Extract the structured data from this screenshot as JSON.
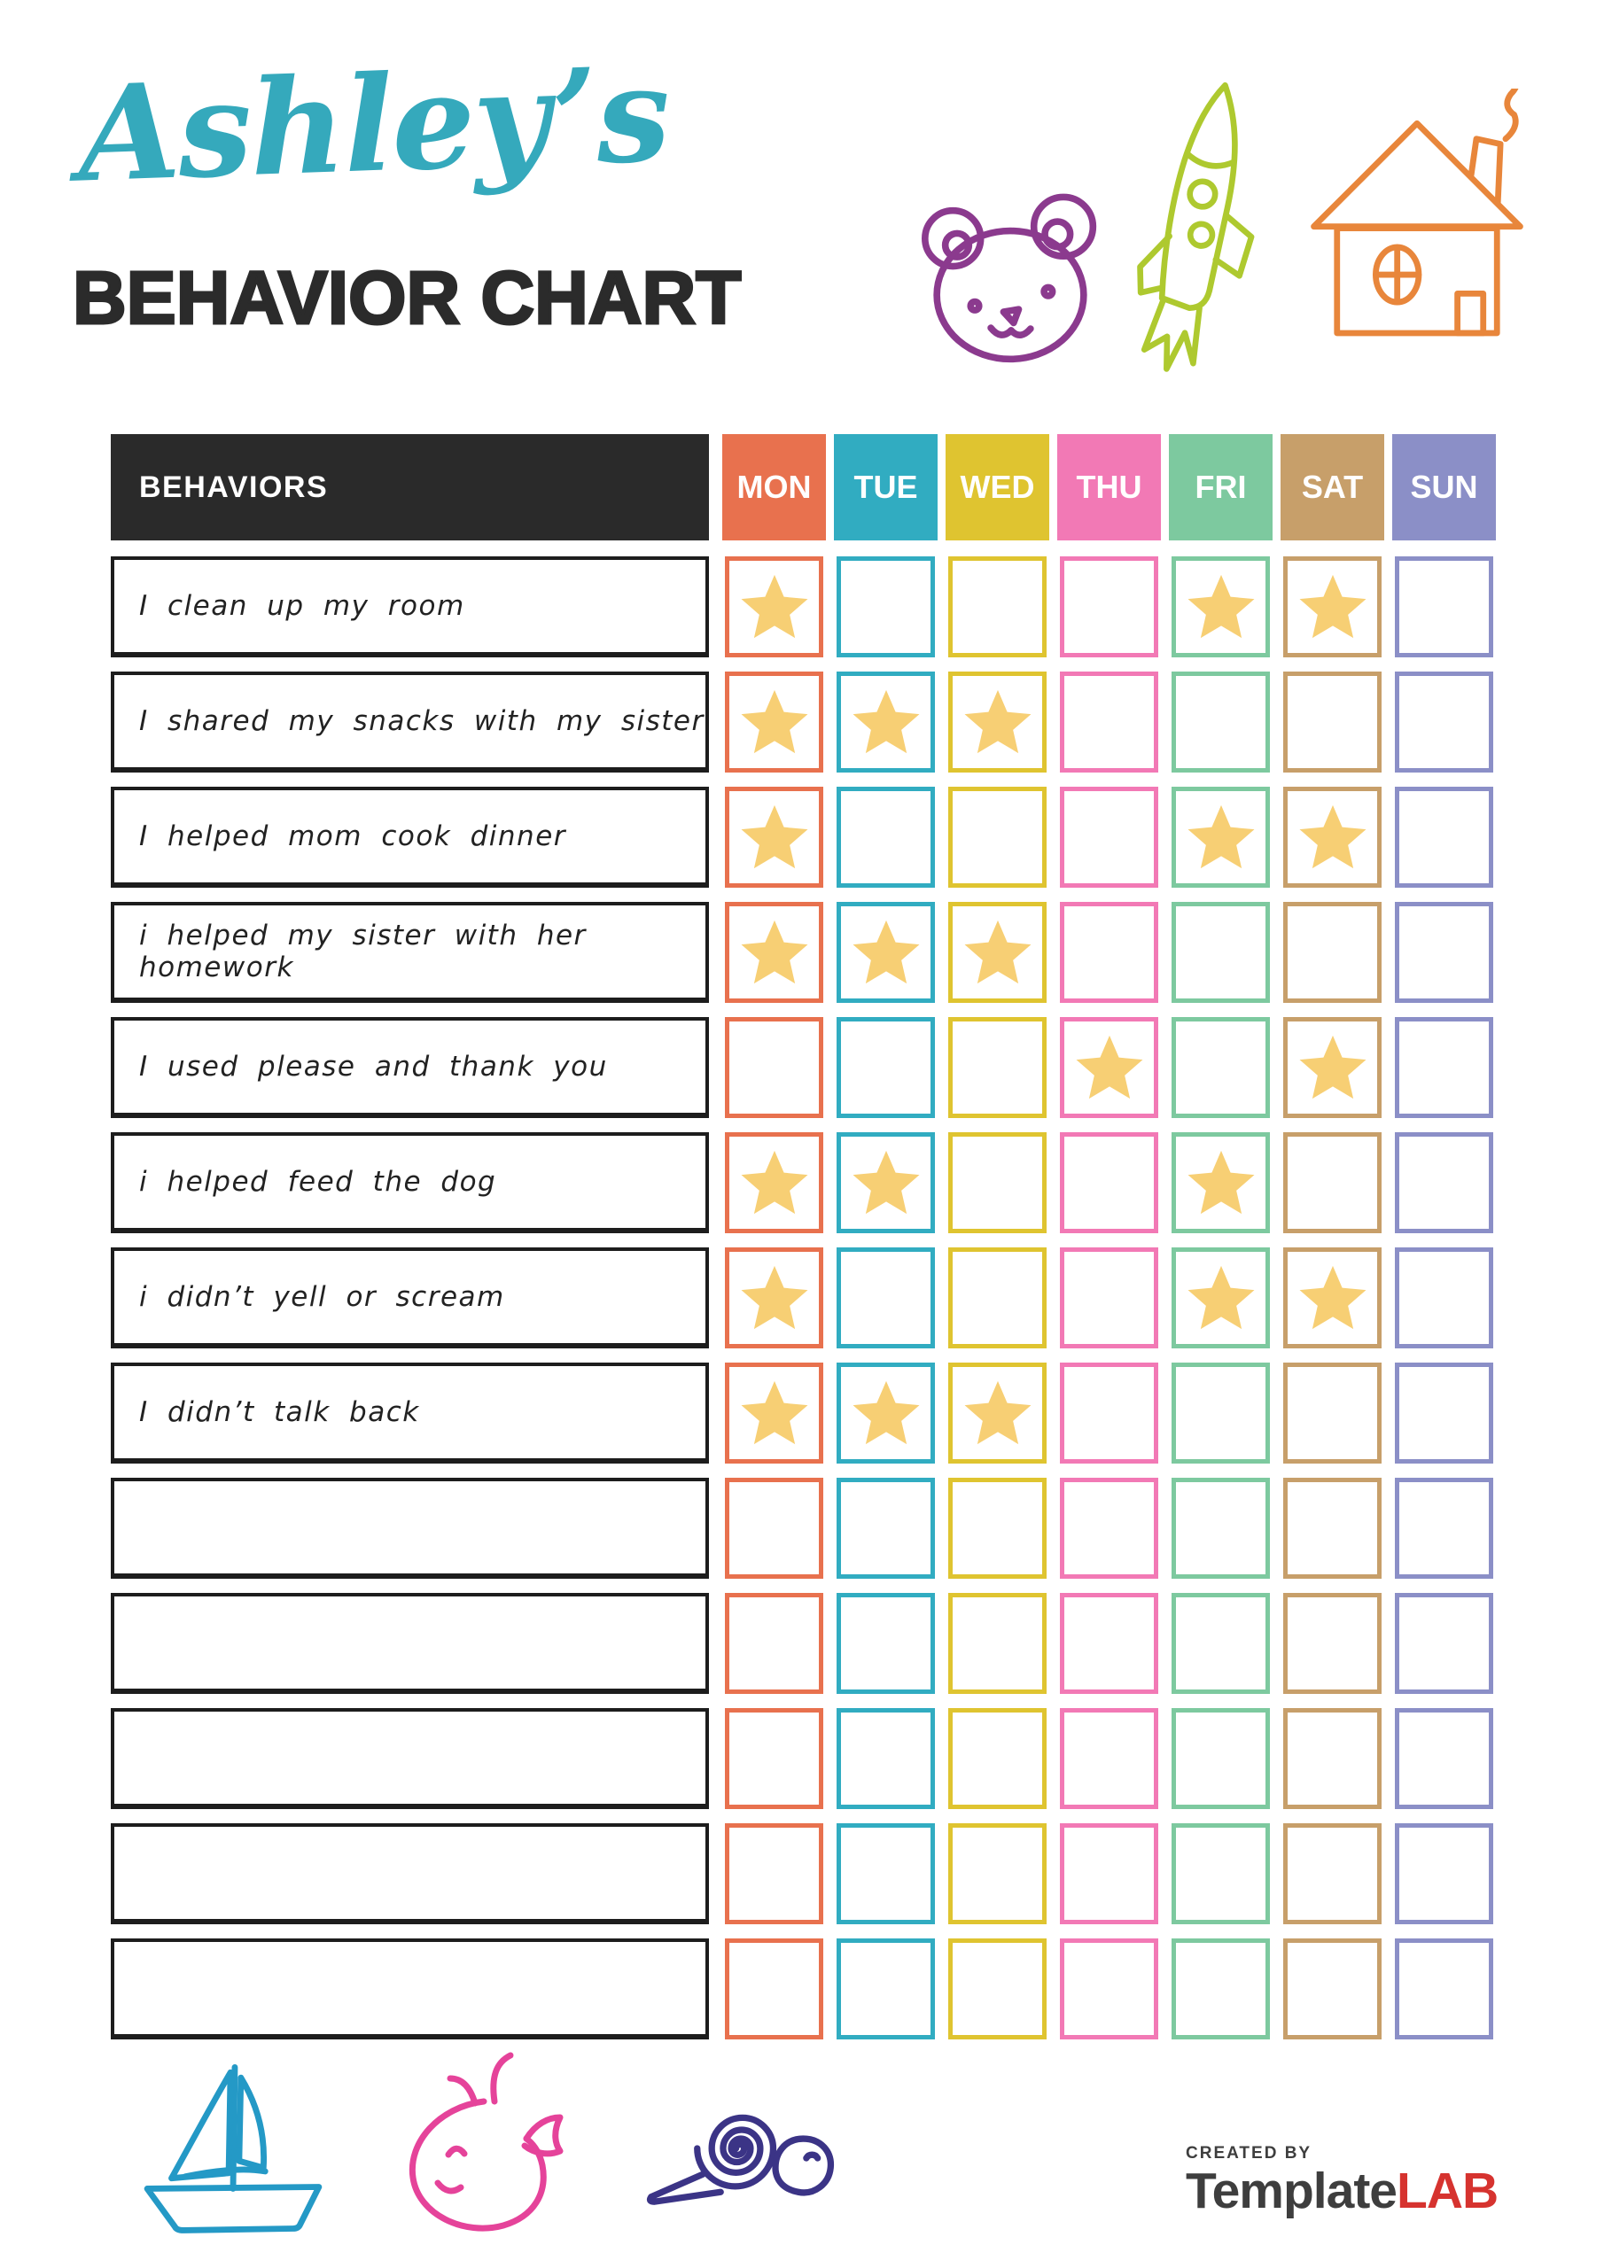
{
  "header": {
    "script_title": "Ashley’s",
    "main_title": "BEHAVIOR CHART"
  },
  "colors": {
    "script_title": "#35A9BC",
    "main_title": "#2B2B2B",
    "table_header_bg": "#2A2A2A",
    "row_border": "#1D1D1D",
    "star": "#F7CF74",
    "bear_icon": "#8B3A8E",
    "rocket_icon": "#AEC92F",
    "house_icon": "#E8863B",
    "sailboat_icon": "#2499C6",
    "whale_icon": "#E5439A",
    "snail_icon": "#3B3486",
    "logo_text": "#3E3E3E",
    "logo_lab": "#D6332F"
  },
  "table": {
    "behaviors_header": "BEHAVIORS",
    "days": [
      {
        "label": "MON",
        "color": "#E8714E"
      },
      {
        "label": "TUE",
        "color": "#31ACC1"
      },
      {
        "label": "WED",
        "color": "#DFC430"
      },
      {
        "label": "THU",
        "color": "#F279B5"
      },
      {
        "label": "FRI",
        "color": "#7DC99F"
      },
      {
        "label": "SAT",
        "color": "#C79F6A"
      },
      {
        "label": "SUN",
        "color": "#8B8FC7"
      }
    ],
    "rows": [
      {
        "behavior": "I clean up my room",
        "stars": [
          "MON",
          "FRI",
          "SAT"
        ]
      },
      {
        "behavior": "I shared my snacks with my sister",
        "stars": [
          "MON",
          "TUE",
          "WED"
        ]
      },
      {
        "behavior": "I helped mom cook dinner",
        "stars": [
          "MON",
          "FRI",
          "SAT"
        ]
      },
      {
        "behavior": "i helped my sister with her homework",
        "stars": [
          "MON",
          "TUE",
          "WED"
        ]
      },
      {
        "behavior": "I used please and thank you",
        "stars": [
          "THU",
          "SAT"
        ]
      },
      {
        "behavior": "i helped feed the dog",
        "stars": [
          "MON",
          "TUE",
          "FRI"
        ]
      },
      {
        "behavior": "i didn’t yell or scream",
        "stars": [
          "MON",
          "FRI",
          "SAT"
        ]
      },
      {
        "behavior": "I didn’t talk back",
        "stars": [
          "MON",
          "TUE",
          "WED"
        ]
      },
      {
        "behavior": "",
        "stars": []
      },
      {
        "behavior": "",
        "stars": []
      },
      {
        "behavior": "",
        "stars": []
      },
      {
        "behavior": "",
        "stars": []
      },
      {
        "behavior": "",
        "stars": []
      }
    ]
  },
  "footer": {
    "created_by": "CREATED BY",
    "brand_name_1": "Template",
    "brand_name_2": "LAB"
  }
}
